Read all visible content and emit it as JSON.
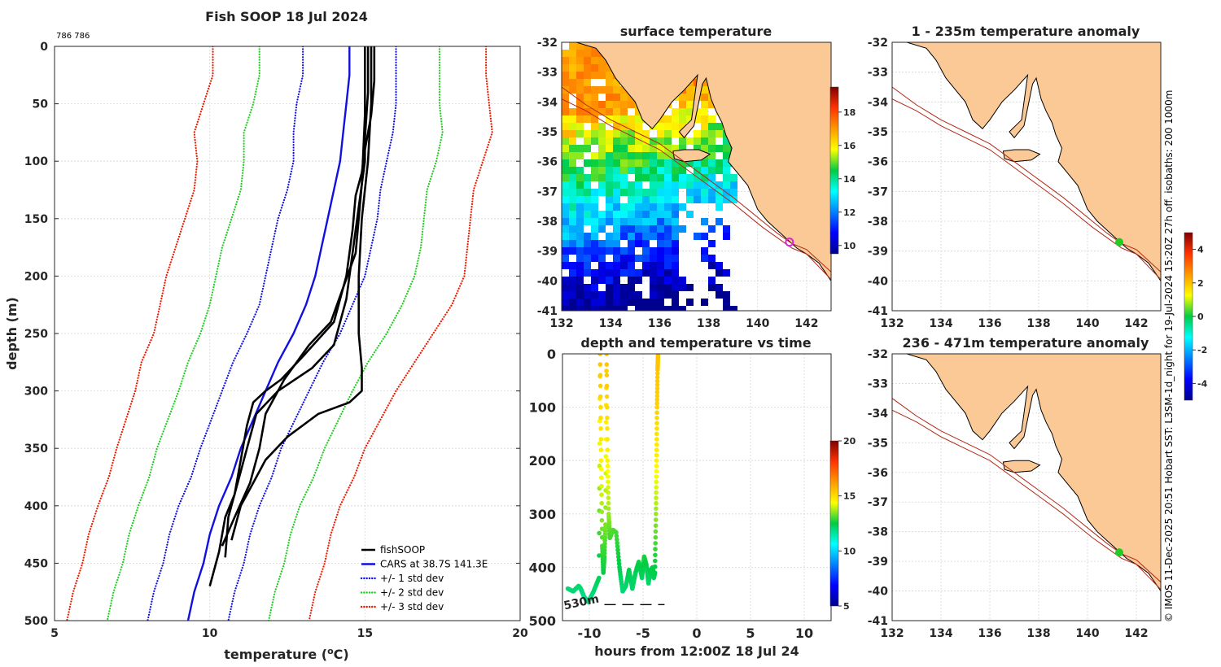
{
  "figure": {
    "title": "Fish SOOP 18 Jul 2024",
    "counts_label": "786 786",
    "side_note": "© IMOS 11-Dec-2025 20:51 Hobart SST: L3SM-1d_night for 19-Jul-2024 15:20Z 27h off. isobaths: 200  1000m"
  },
  "chart_data": [
    {
      "id": "profile",
      "type": "line",
      "title": "Fish SOOP 18 Jul 2024",
      "xlabel": "temperature (°C)",
      "xlabel_main": "temperature (",
      "xlabel_unit": "C)",
      "xlabel_sup": "o",
      "ylabel": "depth (m)",
      "xlim": [
        5,
        20
      ],
      "ylim": [
        0,
        500
      ],
      "xticks": [
        "5",
        "10",
        "15",
        "20"
      ],
      "yticks": [
        "0",
        "50",
        "100",
        "150",
        "200",
        "250",
        "300",
        "350",
        "400",
        "450",
        "500"
      ],
      "legend": [
        "fishSOOP",
        "CARS at 38.7S 141.3E",
        "+/- 1 std dev",
        "+/- 2 std dev",
        "+/- 3 std dev"
      ],
      "legend_position": "bottom-right",
      "depth": [
        0,
        25,
        50,
        75,
        100,
        125,
        150,
        175,
        200,
        225,
        250,
        275,
        300,
        325,
        350,
        375,
        400,
        425,
        450,
        475,
        500
      ],
      "cars_mean": [
        14.5,
        14.5,
        14.4,
        14.3,
        14.2,
        14.0,
        13.8,
        13.6,
        13.4,
        13.1,
        12.7,
        12.2,
        11.8,
        11.4,
        11.0,
        10.7,
        10.3,
        10.0,
        9.8,
        9.5,
        9.3
      ],
      "std1": [
        1.5,
        1.5,
        1.6,
        1.6,
        1.5,
        1.5,
        1.6,
        1.6,
        1.6,
        1.5,
        1.5,
        1.45,
        1.4,
        1.35,
        1.3,
        1.3,
        1.3,
        1.3,
        1.3,
        1.3,
        1.3
      ],
      "std2": [
        2.9,
        2.9,
        3.0,
        3.2,
        3.1,
        3.0,
        3.1,
        3.2,
        3.2,
        3.1,
        3.0,
        2.9,
        2.8,
        2.75,
        2.7,
        2.65,
        2.6,
        2.6,
        2.6,
        2.6,
        2.6
      ],
      "std3": [
        4.4,
        4.4,
        4.6,
        4.8,
        4.6,
        4.5,
        4.6,
        4.7,
        4.8,
        4.7,
        4.5,
        4.4,
        4.2,
        4.1,
        4.0,
        3.95,
        3.9,
        3.9,
        3.9,
        3.9,
        3.9
      ],
      "casts": [
        {
          "depth": [
            0,
            30,
            60,
            90,
            110,
            130,
            160,
            200,
            240,
            270,
            290,
            300,
            310,
            330,
            360,
            390,
            410,
            440,
            470
          ],
          "temp": [
            15.3,
            15.3,
            15.2,
            15.0,
            14.9,
            14.7,
            14.6,
            14.4,
            14.0,
            13.0,
            12.3,
            11.8,
            11.4,
            11.2,
            11.0,
            10.8,
            10.5,
            10.3,
            10.0
          ]
        },
        {
          "depth": [
            0,
            40,
            80,
            100,
            140,
            180,
            220,
            260,
            280,
            300,
            320,
            350,
            380,
            410,
            445
          ],
          "temp": [
            15.1,
            15.1,
            15.0,
            15.0,
            14.8,
            14.6,
            14.4,
            14.0,
            13.3,
            12.2,
            11.5,
            11.2,
            10.9,
            10.6,
            10.5
          ]
        },
        {
          "depth": [
            0,
            50,
            100,
            150,
            200,
            250,
            280,
            300,
            310,
            320,
            340,
            360,
            380,
            400,
            430
          ],
          "temp": [
            15.2,
            15.2,
            15.1,
            14.9,
            14.8,
            14.8,
            14.9,
            14.9,
            14.5,
            13.5,
            12.5,
            11.8,
            11.4,
            11.0,
            10.7
          ]
        },
        {
          "depth": [
            0,
            60,
            120,
            180,
            210,
            240,
            260,
            290,
            320,
            350,
            380,
            410,
            435
          ],
          "temp": [
            15.0,
            15.0,
            14.9,
            14.7,
            14.3,
            13.9,
            13.2,
            12.4,
            11.8,
            11.6,
            11.3,
            10.8,
            10.4
          ]
        }
      ]
    },
    {
      "id": "sst",
      "type": "heatmap",
      "title": "surface temperature",
      "xticks": [
        "132",
        "134",
        "136",
        "138",
        "140",
        "142"
      ],
      "yticks": [
        "-32",
        "-33",
        "-34",
        "-35",
        "-36",
        "-37",
        "-38",
        "-39",
        "-40",
        "-41"
      ],
      "xlim": [
        132,
        143
      ],
      "ylim": [
        -41,
        -32
      ],
      "colorbar_ticks": [
        "18",
        "16",
        "14",
        "12",
        "10"
      ],
      "colorbar_range": [
        9.5,
        19.5
      ],
      "marker": {
        "lon": 141.3,
        "lat": -38.7
      }
    },
    {
      "id": "depth_time",
      "type": "scatter",
      "title": "depth and temperature vs time",
      "xlabel": "hours from 12:00Z 18 Jul 24",
      "xticks": [
        "-10",
        "-5",
        "0",
        "5",
        "10"
      ],
      "yticks": [
        "0",
        "100",
        "200",
        "300",
        "400",
        "500"
      ],
      "xlim": [
        -12.5,
        12.5
      ],
      "ylim": [
        0,
        500
      ],
      "colorbar_ticks": [
        "20",
        "15",
        "10",
        "5"
      ],
      "colorbar_range": [
        5,
        20
      ],
      "bottom_label": "530m",
      "bottom_depth": 470,
      "hours": [
        -12.0,
        -11.5,
        -11.0,
        -10.8,
        -10.5,
        -10.1,
        -9.6,
        -9.1,
        -9.0,
        -8.9,
        -8.8,
        -8.7,
        -8.6,
        -8.5,
        -8.4,
        -8.3,
        -8.2,
        -8.1,
        -8.0,
        -7.8,
        -7.5,
        -7.2,
        -6.9,
        -6.6,
        -6.3,
        -6.0,
        -5.7,
        -5.4,
        -5.1,
        -4.9,
        -4.7,
        -4.5,
        -4.3,
        -4.1,
        -4.0,
        -3.9,
        -3.8,
        -3.75,
        -3.7,
        -3.65,
        -3.6
      ],
      "depths": [
        440,
        445,
        435,
        440,
        455,
        465,
        445,
        420,
        0,
        200,
        360,
        410,
        380,
        320,
        0,
        200,
        300,
        345,
        340,
        330,
        335,
        400,
        445,
        435,
        405,
        440,
        410,
        390,
        420,
        380,
        395,
        430,
        405,
        400,
        420,
        410,
        300,
        200,
        100,
        30,
        0
      ],
      "temps": [
        12.0,
        12.0,
        12.1,
        12.0,
        11.9,
        11.8,
        12.0,
        12.3,
        15.5,
        14.6,
        13.0,
        12.5,
        12.8,
        13.4,
        15.5,
        14.6,
        13.6,
        13.0,
        13.0,
        13.1,
        13.0,
        12.4,
        12.0,
        12.1,
        12.4,
        12.1,
        12.3,
        12.6,
        12.2,
        12.7,
        12.5,
        12.1,
        12.4,
        12.5,
        12.3,
        12.4,
        13.6,
        14.6,
        15.2,
        15.4,
        15.5
      ]
    },
    {
      "id": "anom1",
      "type": "heatmap",
      "title": "1 - 235m temperature anomaly",
      "xticks": [
        "132",
        "134",
        "136",
        "138",
        "140",
        "142"
      ],
      "yticks": [
        "-32",
        "-33",
        "-34",
        "-35",
        "-36",
        "-37",
        "-38",
        "-39",
        "-40",
        "-41"
      ],
      "xlim": [
        132,
        143
      ],
      "ylim": [
        -41,
        -32
      ],
      "colorbar_ticks": [
        "4",
        "2",
        "0",
        "-2",
        "-4"
      ],
      "colorbar_range": [
        -5,
        5
      ],
      "marker": {
        "lon": 141.3,
        "lat": -38.7
      }
    },
    {
      "id": "anom2",
      "type": "heatmap",
      "title": "236 - 471m temperature anomaly",
      "xticks": [
        "132",
        "134",
        "136",
        "138",
        "140",
        "142"
      ],
      "yticks": [
        "-32",
        "-33",
        "-34",
        "-35",
        "-36",
        "-37",
        "-38",
        "-39",
        "-40",
        "-41"
      ],
      "xlim": [
        132,
        143
      ],
      "ylim": [
        -41,
        -32
      ],
      "marker": {
        "lon": 141.3,
        "lat": -38.7
      }
    }
  ],
  "colors": {
    "land": "#fbc996",
    "isobath": "#b22a1a",
    "cast": "#000000",
    "cars": "#1010e0",
    "std1": "#1010e0",
    "std2": "#22cc22",
    "std3": "#ee1a00",
    "marker_anomaly": "#22cc22",
    "marker_sst": "#dd22dd"
  }
}
